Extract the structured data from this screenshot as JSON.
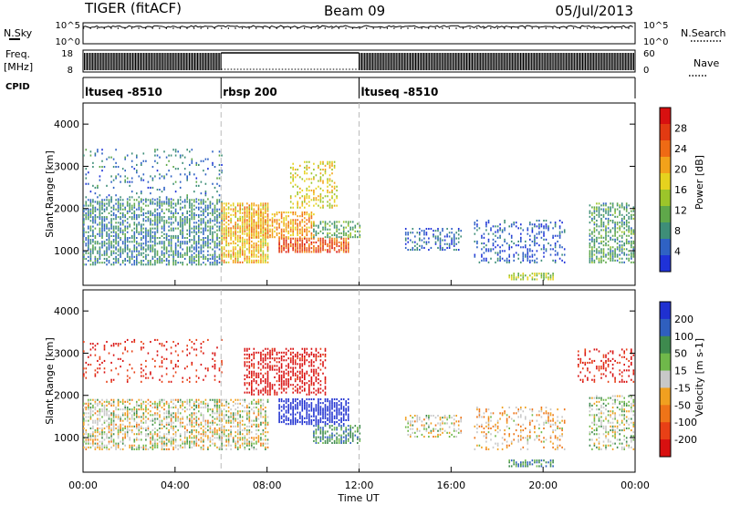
{
  "header": {
    "title": "TIGER (fitACF)",
    "beam": "Beam 09",
    "date": "05/Jul/2013"
  },
  "status_panels": {
    "nsky_label": "N.Sky",
    "nsearch_label": "N.Search",
    "freq_label_line1": "Freq.",
    "freq_label_line2": "[MHz]",
    "nave_label": "Nave",
    "cpid_label": "CPID",
    "noise_ticks_left": [
      "10^5",
      "10^0"
    ],
    "noise_ticks_right": [
      "10^5",
      "10^0"
    ],
    "freq_ticks_left": [
      "18",
      "8"
    ],
    "nave_ticks_right": [
      "60",
      "0"
    ]
  },
  "chart_data": [
    {
      "type": "heatmap",
      "panel": "power",
      "xlabel": "",
      "ylabel": "Slant Range [km]",
      "xlim": [
        0,
        24
      ],
      "ylim": [
        180,
        4500
      ],
      "x_ticks": [
        0,
        4,
        8,
        12,
        16,
        20,
        24
      ],
      "y_ticks": [
        1000,
        2000,
        3000,
        4000
      ],
      "y_tick_labels": [
        "1000",
        "2000",
        "3000",
        "4000"
      ],
      "colorbar_label": "Power [dB]",
      "colorbar_ticks": [
        "4",
        "8",
        "12",
        "16",
        "20",
        "24",
        "28"
      ],
      "colorscale": [
        "#1f32d8",
        "#2f62c4",
        "#3e8e78",
        "#5fa84a",
        "#9cc52a",
        "#e6d21e",
        "#f3a21a",
        "#ef6a14",
        "#e23a12",
        "#d81010"
      ],
      "scan_time_resolution_min": 6,
      "cpid_segments": [
        {
          "label": "ltuseq -8510",
          "start_ut": 0,
          "end_ut": 6
        },
        {
          "label": "rbsp 200",
          "start_ut": 6,
          "end_ut": 12
        },
        {
          "label": "ltuseq -8510",
          "start_ut": 12,
          "end_ut": 24
        }
      ],
      "regions": [
        {
          "t": [
            0,
            6
          ],
          "r": [
            650,
            2200
          ],
          "power": 9,
          "density": 0.6
        },
        {
          "t": [
            0,
            6
          ],
          "r": [
            2200,
            3400
          ],
          "power": 8,
          "density": 0.12
        },
        {
          "t": [
            6,
            8
          ],
          "r": [
            700,
            2100
          ],
          "power": 20,
          "density": 0.75
        },
        {
          "t": [
            7,
            10
          ],
          "r": [
            1300,
            1900
          ],
          "power": 22,
          "density": 0.6
        },
        {
          "t": [
            8.5,
            11.5
          ],
          "r": [
            950,
            1300
          ],
          "power": 26,
          "density": 0.8
        },
        {
          "t": [
            9,
            11
          ],
          "r": [
            2000,
            3100
          ],
          "power": 18,
          "density": 0.35
        },
        {
          "t": [
            10,
            12
          ],
          "r": [
            1300,
            1700
          ],
          "power": 12,
          "density": 0.5
        },
        {
          "t": [
            14,
            16.5
          ],
          "r": [
            1000,
            1500
          ],
          "power": 7,
          "density": 0.45
        },
        {
          "t": [
            17,
            21
          ],
          "r": [
            700,
            1700
          ],
          "power": 6,
          "density": 0.3
        },
        {
          "t": [
            18.5,
            20.5
          ],
          "r": [
            300,
            450
          ],
          "power": 16,
          "density": 0.7
        },
        {
          "t": [
            22,
            24
          ],
          "r": [
            700,
            2100
          ],
          "power": 11,
          "density": 0.55
        }
      ]
    },
    {
      "type": "heatmap",
      "panel": "velocity",
      "xlabel": "Time UT",
      "ylabel": "Slant Range [km]",
      "xlim": [
        0,
        24
      ],
      "ylim": [
        180,
        4500
      ],
      "x_ticks": [
        0,
        4,
        8,
        12,
        16,
        20,
        24
      ],
      "x_tick_labels": [
        "00:00",
        "04:00",
        "08:00",
        "12:00",
        "16:00",
        "20:00",
        "00:00"
      ],
      "y_ticks": [
        1000,
        2000,
        3000,
        4000
      ],
      "y_tick_labels": [
        "1000",
        "2000",
        "3000",
        "4000"
      ],
      "colorbar_label": "Velocity [m s-1]",
      "colorbar_ticks": [
        "200",
        "100",
        "50",
        "15",
        "-15",
        "-50",
        "-100",
        "-200"
      ],
      "colorscale": [
        "#1f30d0",
        "#2f5fbe",
        "#3e8a4e",
        "#6fb84a",
        "#c8c8c8",
        "#f0a020",
        "#ee7418",
        "#e84016",
        "#d81010"
      ],
      "regions": [
        {
          "t": [
            0,
            6
          ],
          "r": [
            700,
            1900
          ],
          "velocity": 0,
          "density": 0.55
        },
        {
          "t": [
            0,
            6
          ],
          "r": [
            2300,
            3300
          ],
          "velocity": -150,
          "density": 0.15
        },
        {
          "t": [
            6,
            8
          ],
          "r": [
            700,
            1900
          ],
          "velocity": 0,
          "density": 0.5
        },
        {
          "t": [
            7,
            10.5
          ],
          "r": [
            2000,
            3100
          ],
          "velocity": -180,
          "density": 0.5
        },
        {
          "t": [
            8.5,
            11.5
          ],
          "r": [
            1300,
            1900
          ],
          "velocity": 210,
          "density": 0.7
        },
        {
          "t": [
            10,
            12
          ],
          "r": [
            850,
            1300
          ],
          "velocity": 60,
          "density": 0.6
        },
        {
          "t": [
            14,
            16.5
          ],
          "r": [
            1000,
            1500
          ],
          "velocity": 0,
          "density": 0.4
        },
        {
          "t": [
            17,
            21
          ],
          "r": [
            700,
            1700
          ],
          "velocity": -20,
          "density": 0.25
        },
        {
          "t": [
            18.5,
            20.5
          ],
          "r": [
            300,
            450
          ],
          "velocity": 60,
          "density": 0.6
        },
        {
          "t": [
            21.5,
            24
          ],
          "r": [
            2300,
            3100
          ],
          "velocity": -160,
          "density": 0.25
        },
        {
          "t": [
            22,
            24
          ],
          "r": [
            700,
            2000
          ],
          "velocity": 10,
          "density": 0.4
        }
      ]
    }
  ]
}
